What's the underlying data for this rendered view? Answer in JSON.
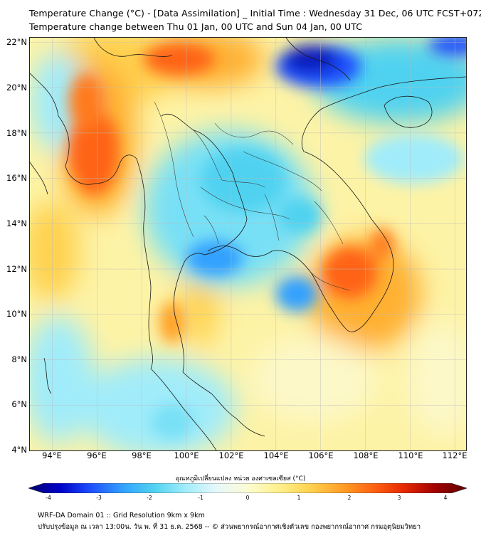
{
  "header": {
    "title_line1": "Temperature Change (°C) - [Data Assimilation] _ Initial Time : Wednesday 31 Dec, 06 UTC FCST+072",
    "title_line2": "Temperature change between Thu 01 Jan, 00 UTC and Sun 04 Jan, 00 UTC"
  },
  "map": {
    "lat_labels": [
      "22°N",
      "20°N",
      "18°N",
      "16°N",
      "14°N",
      "12°N",
      "10°N",
      "8°N",
      "6°N",
      "4°N"
    ],
    "lon_labels": [
      "94°E",
      "96°E",
      "98°E",
      "100°E",
      "102°E",
      "104°E",
      "106°E",
      "108°E",
      "110°E",
      "112°E"
    ],
    "lat_range": [
      4,
      22.2
    ],
    "lon_range": [
      93,
      112.5
    ],
    "gridlines": true,
    "background_color": "#fdf3a6"
  },
  "colorbar": {
    "title": "อุณหภูมิเปลี่ยนแปลง หน่วย องศาเซลเซียส (°C)",
    "tick_labels": [
      "-4",
      "-3",
      "-2",
      "-1",
      "0",
      "1",
      "2",
      "3",
      "4"
    ],
    "range": [
      -4,
      4
    ],
    "colors": [
      "#000070",
      "#0000c8",
      "#1e50ff",
      "#32a0ff",
      "#50d2f0",
      "#a0ecfa",
      "#e6f8fc",
      "#fcfcd2",
      "#fff08c",
      "#ffd250",
      "#ffa028",
      "#ff6414",
      "#e62800",
      "#a00000",
      "#600000"
    ]
  },
  "footer": {
    "line1": "WRF-DA Domain 01 :: Grid Resolution 9km x 9km",
    "line2": "ปรับปรุงข้อมูล ณ เวลา 13:00น. วัน พ. ที่ 31 ธ.ค. 2568 -- © ส่วนพยากรณ์อากาศเชิงตัวเลข กองพยากรณ์อากาศ กรมอุตุนิยมวิทยา"
  }
}
